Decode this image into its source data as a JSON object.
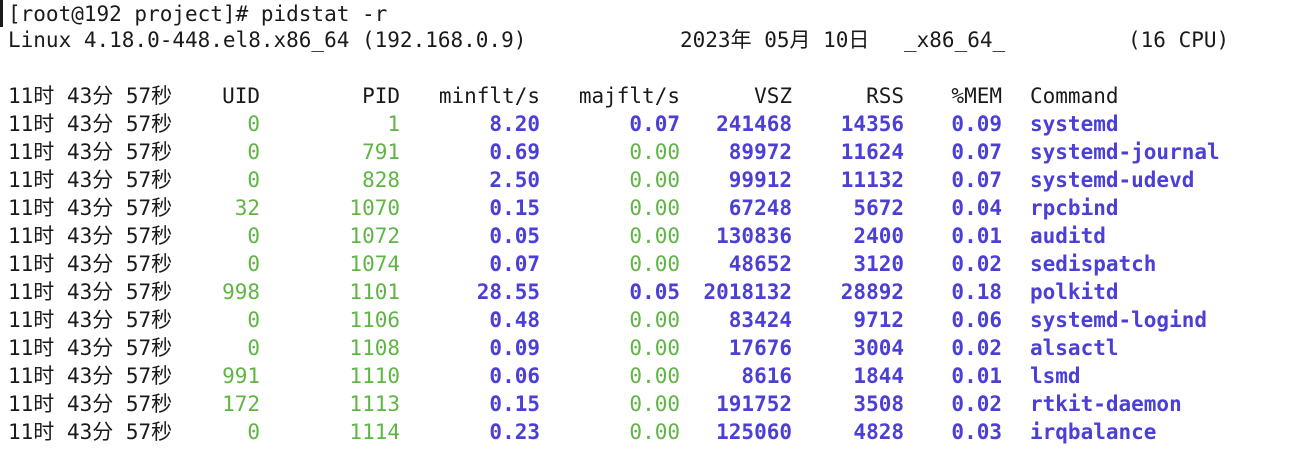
{
  "prompt": "[root@192 project]# pidstat -r",
  "sysinfo": {
    "kernel": "Linux 4.18.0-448.el8.x86_64 (192.168.0.9)",
    "date": "2023年 05月 10日",
    "arch": "_x86_64_",
    "cpus": "(16 CPU)"
  },
  "header": {
    "time": "11时 43分 57秒",
    "uid": "UID",
    "pid": "PID",
    "minflt": "minflt/s",
    "majflt": "majflt/s",
    "vsz": "VSZ",
    "rss": "RSS",
    "mem": "%MEM",
    "command": "Command"
  },
  "rows": [
    {
      "time": "11时 43分 57秒",
      "uid": "0",
      "pid": "1",
      "minflt": "8.20",
      "majflt": "0.07",
      "majflt_active": true,
      "vsz": "241468",
      "rss": "14356",
      "mem": "0.09",
      "command": "systemd"
    },
    {
      "time": "11时 43分 57秒",
      "uid": "0",
      "pid": "791",
      "minflt": "0.69",
      "majflt": "0.00",
      "majflt_active": false,
      "vsz": "89972",
      "rss": "11624",
      "mem": "0.07",
      "command": "systemd-journal"
    },
    {
      "time": "11时 43分 57秒",
      "uid": "0",
      "pid": "828",
      "minflt": "2.50",
      "majflt": "0.00",
      "majflt_active": false,
      "vsz": "99912",
      "rss": "11132",
      "mem": "0.07",
      "command": "systemd-udevd"
    },
    {
      "time": "11时 43分 57秒",
      "uid": "32",
      "pid": "1070",
      "minflt": "0.15",
      "majflt": "0.00",
      "majflt_active": false,
      "vsz": "67248",
      "rss": "5672",
      "mem": "0.04",
      "command": "rpcbind"
    },
    {
      "time": "11时 43分 57秒",
      "uid": "0",
      "pid": "1072",
      "minflt": "0.05",
      "majflt": "0.00",
      "majflt_active": false,
      "vsz": "130836",
      "rss": "2400",
      "mem": "0.01",
      "command": "auditd"
    },
    {
      "time": "11时 43分 57秒",
      "uid": "0",
      "pid": "1074",
      "minflt": "0.07",
      "majflt": "0.00",
      "majflt_active": false,
      "vsz": "48652",
      "rss": "3120",
      "mem": "0.02",
      "command": "sedispatch"
    },
    {
      "time": "11时 43分 57秒",
      "uid": "998",
      "pid": "1101",
      "minflt": "28.55",
      "majflt": "0.05",
      "majflt_active": true,
      "vsz": "2018132",
      "rss": "28892",
      "mem": "0.18",
      "command": "polkitd"
    },
    {
      "time": "11时 43分 57秒",
      "uid": "0",
      "pid": "1106",
      "minflt": "0.48",
      "majflt": "0.00",
      "majflt_active": false,
      "vsz": "83424",
      "rss": "9712",
      "mem": "0.06",
      "command": "systemd-logind"
    },
    {
      "time": "11时 43分 57秒",
      "uid": "0",
      "pid": "1108",
      "minflt": "0.09",
      "majflt": "0.00",
      "majflt_active": false,
      "vsz": "17676",
      "rss": "3004",
      "mem": "0.02",
      "command": "alsactl"
    },
    {
      "time": "11时 43分 57秒",
      "uid": "991",
      "pid": "1110",
      "minflt": "0.06",
      "majflt": "0.00",
      "majflt_active": false,
      "vsz": "8616",
      "rss": "1844",
      "mem": "0.01",
      "command": "lsmd"
    },
    {
      "time": "11时 43分 57秒",
      "uid": "172",
      "pid": "1113",
      "minflt": "0.15",
      "majflt": "0.00",
      "majflt_active": false,
      "vsz": "191752",
      "rss": "3508",
      "mem": "0.02",
      "command": "rtkit-daemon"
    },
    {
      "time": "11时 43分 57秒",
      "uid": "0",
      "pid": "1114",
      "minflt": "0.23",
      "majflt": "0.00",
      "majflt_active": false,
      "vsz": "125060",
      "rss": "4828",
      "mem": "0.03",
      "command": "irqbalance"
    }
  ],
  "colors": {
    "background": "#ffffff",
    "text": "#1a1a1a",
    "uid_pid": "#5fb543",
    "stats": "#4b3fd6"
  }
}
